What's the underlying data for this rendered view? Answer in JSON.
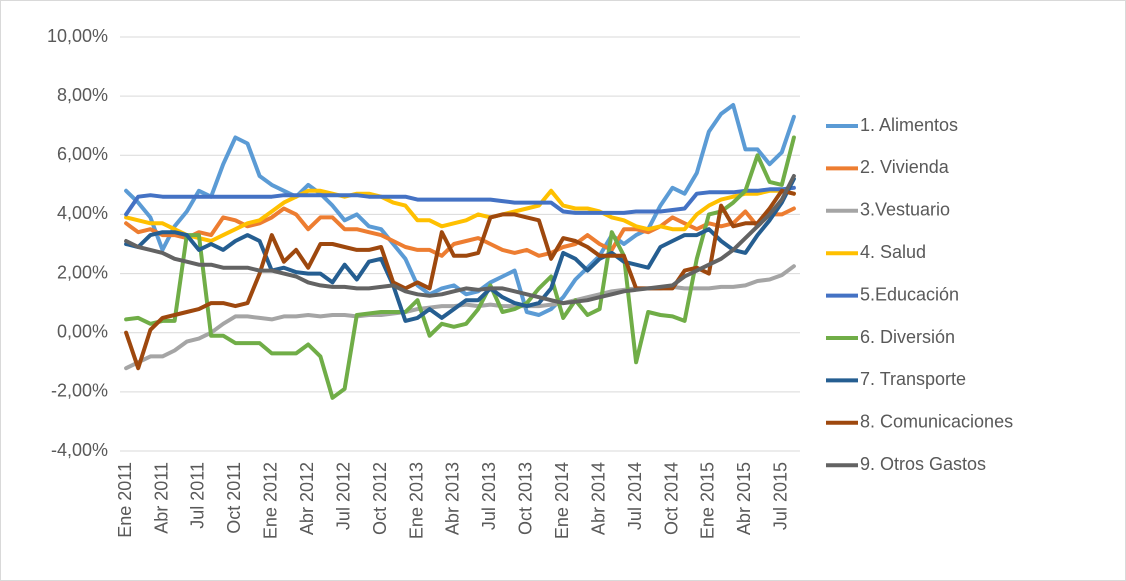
{
  "chart_data": {
    "type": "line",
    "categories": [
      "Ene 2011",
      null,
      null,
      "Abr 2011",
      null,
      null,
      "Jul 2011",
      null,
      null,
      "Oct 2011",
      null,
      null,
      "Ene 2012",
      null,
      null,
      "Abr 2012",
      null,
      null,
      "Jul 2012",
      null,
      null,
      "Oct 2012",
      null,
      null,
      "Ene 2013",
      null,
      null,
      "Abr 2013",
      null,
      null,
      "Jul 2013",
      null,
      null,
      "Oct 2013",
      null,
      null,
      "Ene 2014",
      null,
      null,
      "Abr 2014",
      null,
      null,
      "Jul 2014",
      null,
      null,
      "Oct 2014",
      null,
      null,
      "Ene 2015",
      null,
      null,
      "Abr 2015",
      null,
      null,
      "Jul 2015",
      null
    ],
    "ylim": [
      -4,
      10
    ],
    "yticks": [
      {
        "value": -4,
        "label": "-4,00%"
      },
      {
        "value": -2,
        "label": "-2,00%"
      },
      {
        "value": 0,
        "label": "0,00%"
      },
      {
        "value": 2,
        "label": "2,00%"
      },
      {
        "value": 4,
        "label": "4,00%"
      },
      {
        "value": 6,
        "label": "6,00%"
      },
      {
        "value": 8,
        "label": "8,00%"
      },
      {
        "value": 10,
        "label": "10,00%"
      }
    ],
    "grid": true,
    "legend": "right",
    "series": [
      {
        "name": "1. Alimentos",
        "color": "#5b9bd5",
        "values": [
          4.8,
          4.4,
          3.9,
          2.8,
          3.6,
          4.1,
          4.8,
          4.6,
          5.7,
          6.6,
          6.4,
          5.3,
          5.0,
          4.8,
          4.6,
          5.0,
          4.7,
          4.3,
          3.8,
          4.0,
          3.6,
          3.5,
          3.0,
          2.5,
          1.6,
          1.3,
          1.5,
          1.6,
          1.3,
          1.4,
          1.7,
          1.9,
          2.1,
          0.7,
          0.6,
          0.8,
          1.2,
          1.8,
          2.2,
          2.6,
          3.3,
          3.0,
          3.3,
          3.5,
          4.3,
          4.9,
          4.7,
          5.4,
          6.8,
          7.4,
          7.7,
          6.2,
          6.2,
          5.7,
          6.1,
          7.3
        ]
      },
      {
        "name": "2. Vivienda",
        "color": "#ed7d31",
        "values": [
          3.7,
          3.4,
          3.5,
          3.3,
          3.3,
          3.2,
          3.4,
          3.3,
          3.9,
          3.8,
          3.6,
          3.7,
          3.9,
          4.2,
          4.0,
          3.5,
          3.9,
          3.9,
          3.5,
          3.5,
          3.4,
          3.3,
          3.1,
          2.9,
          2.8,
          2.8,
          2.6,
          3.0,
          3.1,
          3.2,
          3.0,
          2.8,
          2.7,
          2.8,
          2.6,
          2.7,
          2.9,
          3.0,
          3.3,
          3.0,
          2.8,
          3.5,
          3.5,
          3.4,
          3.6,
          3.9,
          3.7,
          3.5,
          3.7,
          3.6,
          3.7,
          4.1,
          3.6,
          4.0,
          4.0,
          4.2
        ]
      },
      {
        "name": "3.Vestuario",
        "color": "#a5a5a5",
        "values": [
          -1.2,
          -1.0,
          -0.8,
          -0.8,
          -0.6,
          -0.3,
          -0.2,
          0.0,
          0.3,
          0.55,
          0.55,
          0.5,
          0.45,
          0.55,
          0.55,
          0.6,
          0.55,
          0.6,
          0.6,
          0.55,
          0.6,
          0.6,
          0.65,
          0.7,
          0.8,
          0.85,
          0.9,
          0.9,
          0.95,
          0.9,
          0.95,
          0.9,
          0.9,
          0.9,
          0.9,
          0.95,
          1.0,
          1.1,
          1.2,
          1.3,
          1.4,
          1.45,
          1.5,
          1.5,
          1.5,
          1.55,
          1.5,
          1.5,
          1.5,
          1.55,
          1.55,
          1.6,
          1.75,
          1.8,
          1.95,
          2.25
        ]
      },
      {
        "name": "4. Salud",
        "color": "#ffc000",
        "values": [
          3.9,
          3.8,
          3.7,
          3.7,
          3.5,
          3.3,
          3.2,
          3.1,
          3.3,
          3.5,
          3.7,
          3.8,
          4.1,
          4.4,
          4.6,
          4.8,
          4.8,
          4.7,
          4.6,
          4.7,
          4.7,
          4.6,
          4.4,
          4.3,
          3.8,
          3.8,
          3.6,
          3.7,
          3.8,
          4.0,
          3.9,
          4.0,
          4.1,
          4.2,
          4.3,
          4.8,
          4.3,
          4.2,
          4.2,
          4.1,
          3.9,
          3.8,
          3.6,
          3.5,
          3.6,
          3.5,
          3.5,
          4.0,
          4.3,
          4.5,
          4.6,
          4.7,
          4.7,
          4.8,
          4.8,
          4.7
        ]
      },
      {
        "name": "5.Educación",
        "color": "#4472c4",
        "values": [
          4.0,
          4.6,
          4.65,
          4.6,
          4.6,
          4.6,
          4.6,
          4.6,
          4.6,
          4.6,
          4.6,
          4.6,
          4.6,
          4.65,
          4.65,
          4.65,
          4.65,
          4.65,
          4.65,
          4.65,
          4.6,
          4.6,
          4.6,
          4.6,
          4.5,
          4.5,
          4.5,
          4.5,
          4.5,
          4.5,
          4.5,
          4.45,
          4.4,
          4.4,
          4.4,
          4.4,
          4.1,
          4.05,
          4.05,
          4.05,
          4.05,
          4.05,
          4.1,
          4.1,
          4.1,
          4.15,
          4.2,
          4.7,
          4.75,
          4.75,
          4.75,
          4.8,
          4.8,
          4.85,
          4.85,
          4.9
        ]
      },
      {
        "name": "6. Diversión",
        "color": "#70ad47",
        "values": [
          0.45,
          0.5,
          0.3,
          0.4,
          0.4,
          3.3,
          3.3,
          -0.1,
          -0.1,
          -0.35,
          -0.35,
          -0.35,
          -0.7,
          -0.7,
          -0.7,
          -0.4,
          -0.8,
          -2.2,
          -1.9,
          0.6,
          0.65,
          0.7,
          0.7,
          0.7,
          1.1,
          -0.1,
          0.3,
          0.2,
          0.3,
          0.8,
          1.6,
          0.7,
          0.8,
          1.0,
          1.5,
          1.9,
          0.5,
          1.1,
          0.6,
          0.8,
          3.4,
          2.6,
          -1.0,
          0.7,
          0.6,
          0.55,
          0.4,
          2.5,
          4.0,
          4.1,
          4.4,
          4.8,
          6.0,
          5.1,
          5.0,
          6.6
        ]
      },
      {
        "name": "7. Transporte",
        "color": "#255e91",
        "values": [
          3.0,
          2.9,
          3.3,
          3.4,
          3.4,
          3.3,
          2.8,
          3.0,
          2.8,
          3.1,
          3.3,
          3.1,
          2.1,
          2.2,
          2.05,
          2.0,
          2.0,
          1.7,
          2.3,
          1.8,
          2.4,
          2.5,
          1.6,
          0.4,
          0.5,
          0.8,
          0.5,
          0.8,
          1.1,
          1.1,
          1.5,
          1.2,
          1.0,
          0.9,
          1.0,
          1.5,
          2.7,
          2.5,
          2.1,
          2.5,
          2.7,
          2.4,
          2.3,
          2.2,
          2.9,
          3.1,
          3.3,
          3.3,
          3.5,
          3.1,
          2.8,
          2.7,
          3.3,
          3.8,
          4.4,
          5.2
        ]
      },
      {
        "name": "8. Comunicaciones",
        "color": "#9e480e",
        "values": [
          0.0,
          -1.2,
          0.1,
          0.5,
          0.6,
          0.7,
          0.8,
          1.0,
          1.0,
          0.9,
          1.0,
          2.0,
          3.3,
          2.4,
          2.8,
          2.2,
          3.0,
          3.0,
          2.9,
          2.8,
          2.8,
          2.9,
          1.7,
          1.5,
          1.7,
          1.5,
          3.4,
          2.6,
          2.6,
          2.7,
          3.9,
          4.0,
          4.0,
          3.9,
          3.8,
          2.5,
          3.2,
          3.1,
          2.9,
          2.6,
          2.6,
          2.6,
          1.5,
          1.5,
          1.5,
          1.5,
          2.1,
          2.2,
          2.0,
          4.3,
          3.6,
          3.7,
          3.7,
          4.2,
          4.8,
          4.7
        ]
      },
      {
        "name": "9. Otros Gastos",
        "color": "#636363",
        "values": [
          3.1,
          2.9,
          2.8,
          2.7,
          2.5,
          2.4,
          2.3,
          2.3,
          2.2,
          2.2,
          2.2,
          2.1,
          2.1,
          2.0,
          1.9,
          1.7,
          1.6,
          1.55,
          1.55,
          1.5,
          1.5,
          1.55,
          1.6,
          1.4,
          1.3,
          1.25,
          1.3,
          1.4,
          1.5,
          1.45,
          1.5,
          1.5,
          1.4,
          1.3,
          1.2,
          1.1,
          1.0,
          1.05,
          1.1,
          1.2,
          1.3,
          1.4,
          1.45,
          1.5,
          1.55,
          1.6,
          1.9,
          2.1,
          2.3,
          2.5,
          2.8,
          3.2,
          3.6,
          4.0,
          4.5,
          5.3
        ]
      }
    ]
  }
}
